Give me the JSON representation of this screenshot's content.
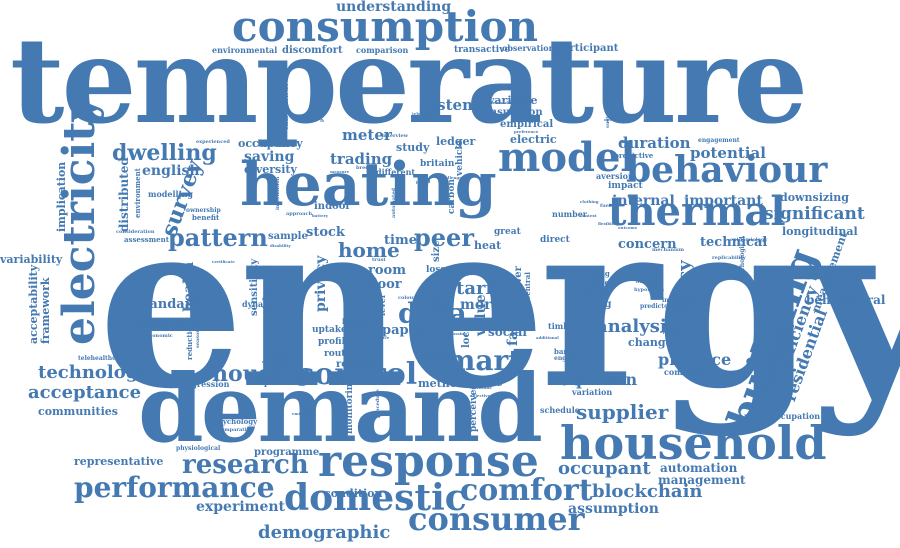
{
  "color": "#4479b2",
  "words": {
    "energy": "energy",
    "temperature": "temperature",
    "demand": "demand",
    "consumption": "consumption",
    "heating": "heating",
    "household": "household",
    "response": "response",
    "model": "model",
    "behaviour": "behaviour",
    "thermal": "thermal",
    "electricity": "electricity",
    "building": "building",
    "domestic": "domestic",
    "control": "control",
    "comfort": "comfort",
    "consumer": "consumer",
    "smart": "smart",
    "performance": "performance",
    "research": "research",
    "housing": "housing",
    "data": "data",
    "pattern": "pattern",
    "survey": "survey",
    "dwelling": "dwelling",
    "peer": "peer",
    "analysis": "analysis",
    "technology": "technology",
    "acceptance": "acceptance",
    "supplier": "supplier",
    "occupant": "occupant",
    "blockchain": "blockchain",
    "demographic": "demographic",
    "experiment": "experiment",
    "assumption": "assumption",
    "significant": "significant",
    "residential": "residential",
    "efficiency": "efficiency",
    "policy": "policy",
    "tariff": "tariff",
    "person": "person",
    "practice": "practice",
    "understanding": "understanding",
    "system": "system",
    "duration": "duration",
    "potential": "potential",
    "internal": "internal",
    "important": "important",
    "technical": "technical",
    "concern": "concern",
    "home": "home",
    "trading": "trading",
    "meter": "meter",
    "english": "english",
    "saving": "saving",
    "diversity": "diversity",
    "occupancy": "occupancy",
    "standard": "standard",
    "multiple": "multiple",
    "health": "health",
    "stock": "stock",
    "sample": "sample",
    "time": "time",
    "room": "room",
    "floor": "floor",
    "paper": "paper",
    "more": "more",
    "social": "social",
    "value": "value",
    "factor": "factor",
    "space": "space",
    "method": "method",
    "routine": "routine",
    "retrofit": "retrofit",
    "profile": "profile",
    "uptake": "uptake",
    "privacy": "privacy",
    "evidence": "evidence",
    "sensitivity": "sensitivity",
    "suspended": "suspended",
    "behavioural": "behavioural",
    "measurement": "measurement",
    "longitudinal": "longitudinal",
    "downsizing": "downsizing",
    "automation": "automation",
    "management": "management",
    "condition": "condition",
    "representative": "representative",
    "programme": "programme",
    "communities": "communities",
    "variability": "variability",
    "framework": "framework",
    "acceptability": "acceptability",
    "implication": "implication",
    "distributed": "distributed",
    "environment": "environment",
    "modelling": "modelling",
    "assessment": "assessment",
    "benefit": "benefit",
    "environmental": "environmental",
    "discomfort": "discomfort",
    "comparison": "comparison",
    "transactive": "transactive",
    "observational": "observational",
    "participant": "participant",
    "variable": "variable",
    "insulation": "insulation",
    "empirical": "empirical",
    "electric": "electric",
    "ledger": "ledger",
    "study": "study",
    "heat": "heat",
    "great": "great",
    "direct": "direct",
    "change": "change",
    "predictive": "predictive",
    "impact": "impact",
    "number": "number",
    "adaptive": "adaptive",
    "regression": "regression",
    "monitoring": "monitoring",
    "perceived": "perceived",
    "schedule": "schedule",
    "variation": "variation",
    "community": "community",
    "underoccupation": "underoccupation",
    "telehealthcare": "telehealthcare",
    "psychology": "psychology",
    "loss": "loss",
    "size": "size",
    "indoor": "indoor",
    "different": "different",
    "britain": "britain",
    "review": "review",
    "living": "living",
    "finding": "finding",
    "setting": "setting",
    "activity": "activity",
    "timber": "timber",
    "barrier": "barrier",
    "england": "england",
    "engagement": "engagement",
    "aversion": "aversion",
    "power": "power",
    "carbon": "carbon",
    "vehicle": "vehicle",
    "central": "central",
    "reduction": "reduction",
    "dynamic": "dynamic",
    "ownership": "ownership",
    "local": "local",
    "result": "result",
    "higher": "higher",
    "cold": "cold",
    "hypothesis": "hypothesis",
    "predictor": "predictor",
    "individual": "individual",
    "psychological": "psychological",
    "replicability": "replicability",
    "epidemiology": "epidemiology",
    "mechanism": "mechanism",
    "acceptable": "acceptable",
    "seasonal": "seasonal",
    "economic": "economic",
    "consideration": "consideration",
    "characteristic": "characteristic",
    "contribution": "contribution",
    "demandside": "demandside",
    "preference": "preference",
    "experienced": "experienced",
    "interview": "interview",
    "approach": "approach",
    "physiological": "physiological",
    "comparative": "comparative",
    "certificate": "certificate",
    "emission": "emission",
    "disability": "disability",
    "information": "information",
    "population": "population",
    "challenge": "challenge",
    "battery": "battery",
    "automated": "automated",
    "trust": "trust",
    "colour": "colour",
    "loud": "loud",
    "level": "level",
    "reduce": "reduce",
    "additional": "additional",
    "crossing": "crossing",
    "attitude": "attitude",
    "electrification": "electrification",
    "procedure": "procedure",
    "objective": "objective",
    "proportion": "proportion",
    "fuel": "fuel",
    "outcome": "outcome",
    "measure": "measure",
    "bredem": "bredem",
    "clothing": "clothing",
    "period": "period",
    "variance": "variance",
    "appliance": "appliance",
    "operation": "operation",
    "context": "context",
    "flexibility": "flexibility",
    "lighting": "lighting",
    "knowing": "knowing",
    "telehealth": "telehealth",
    "sustainability": "sustainability",
    "framing": "framing"
  }
}
